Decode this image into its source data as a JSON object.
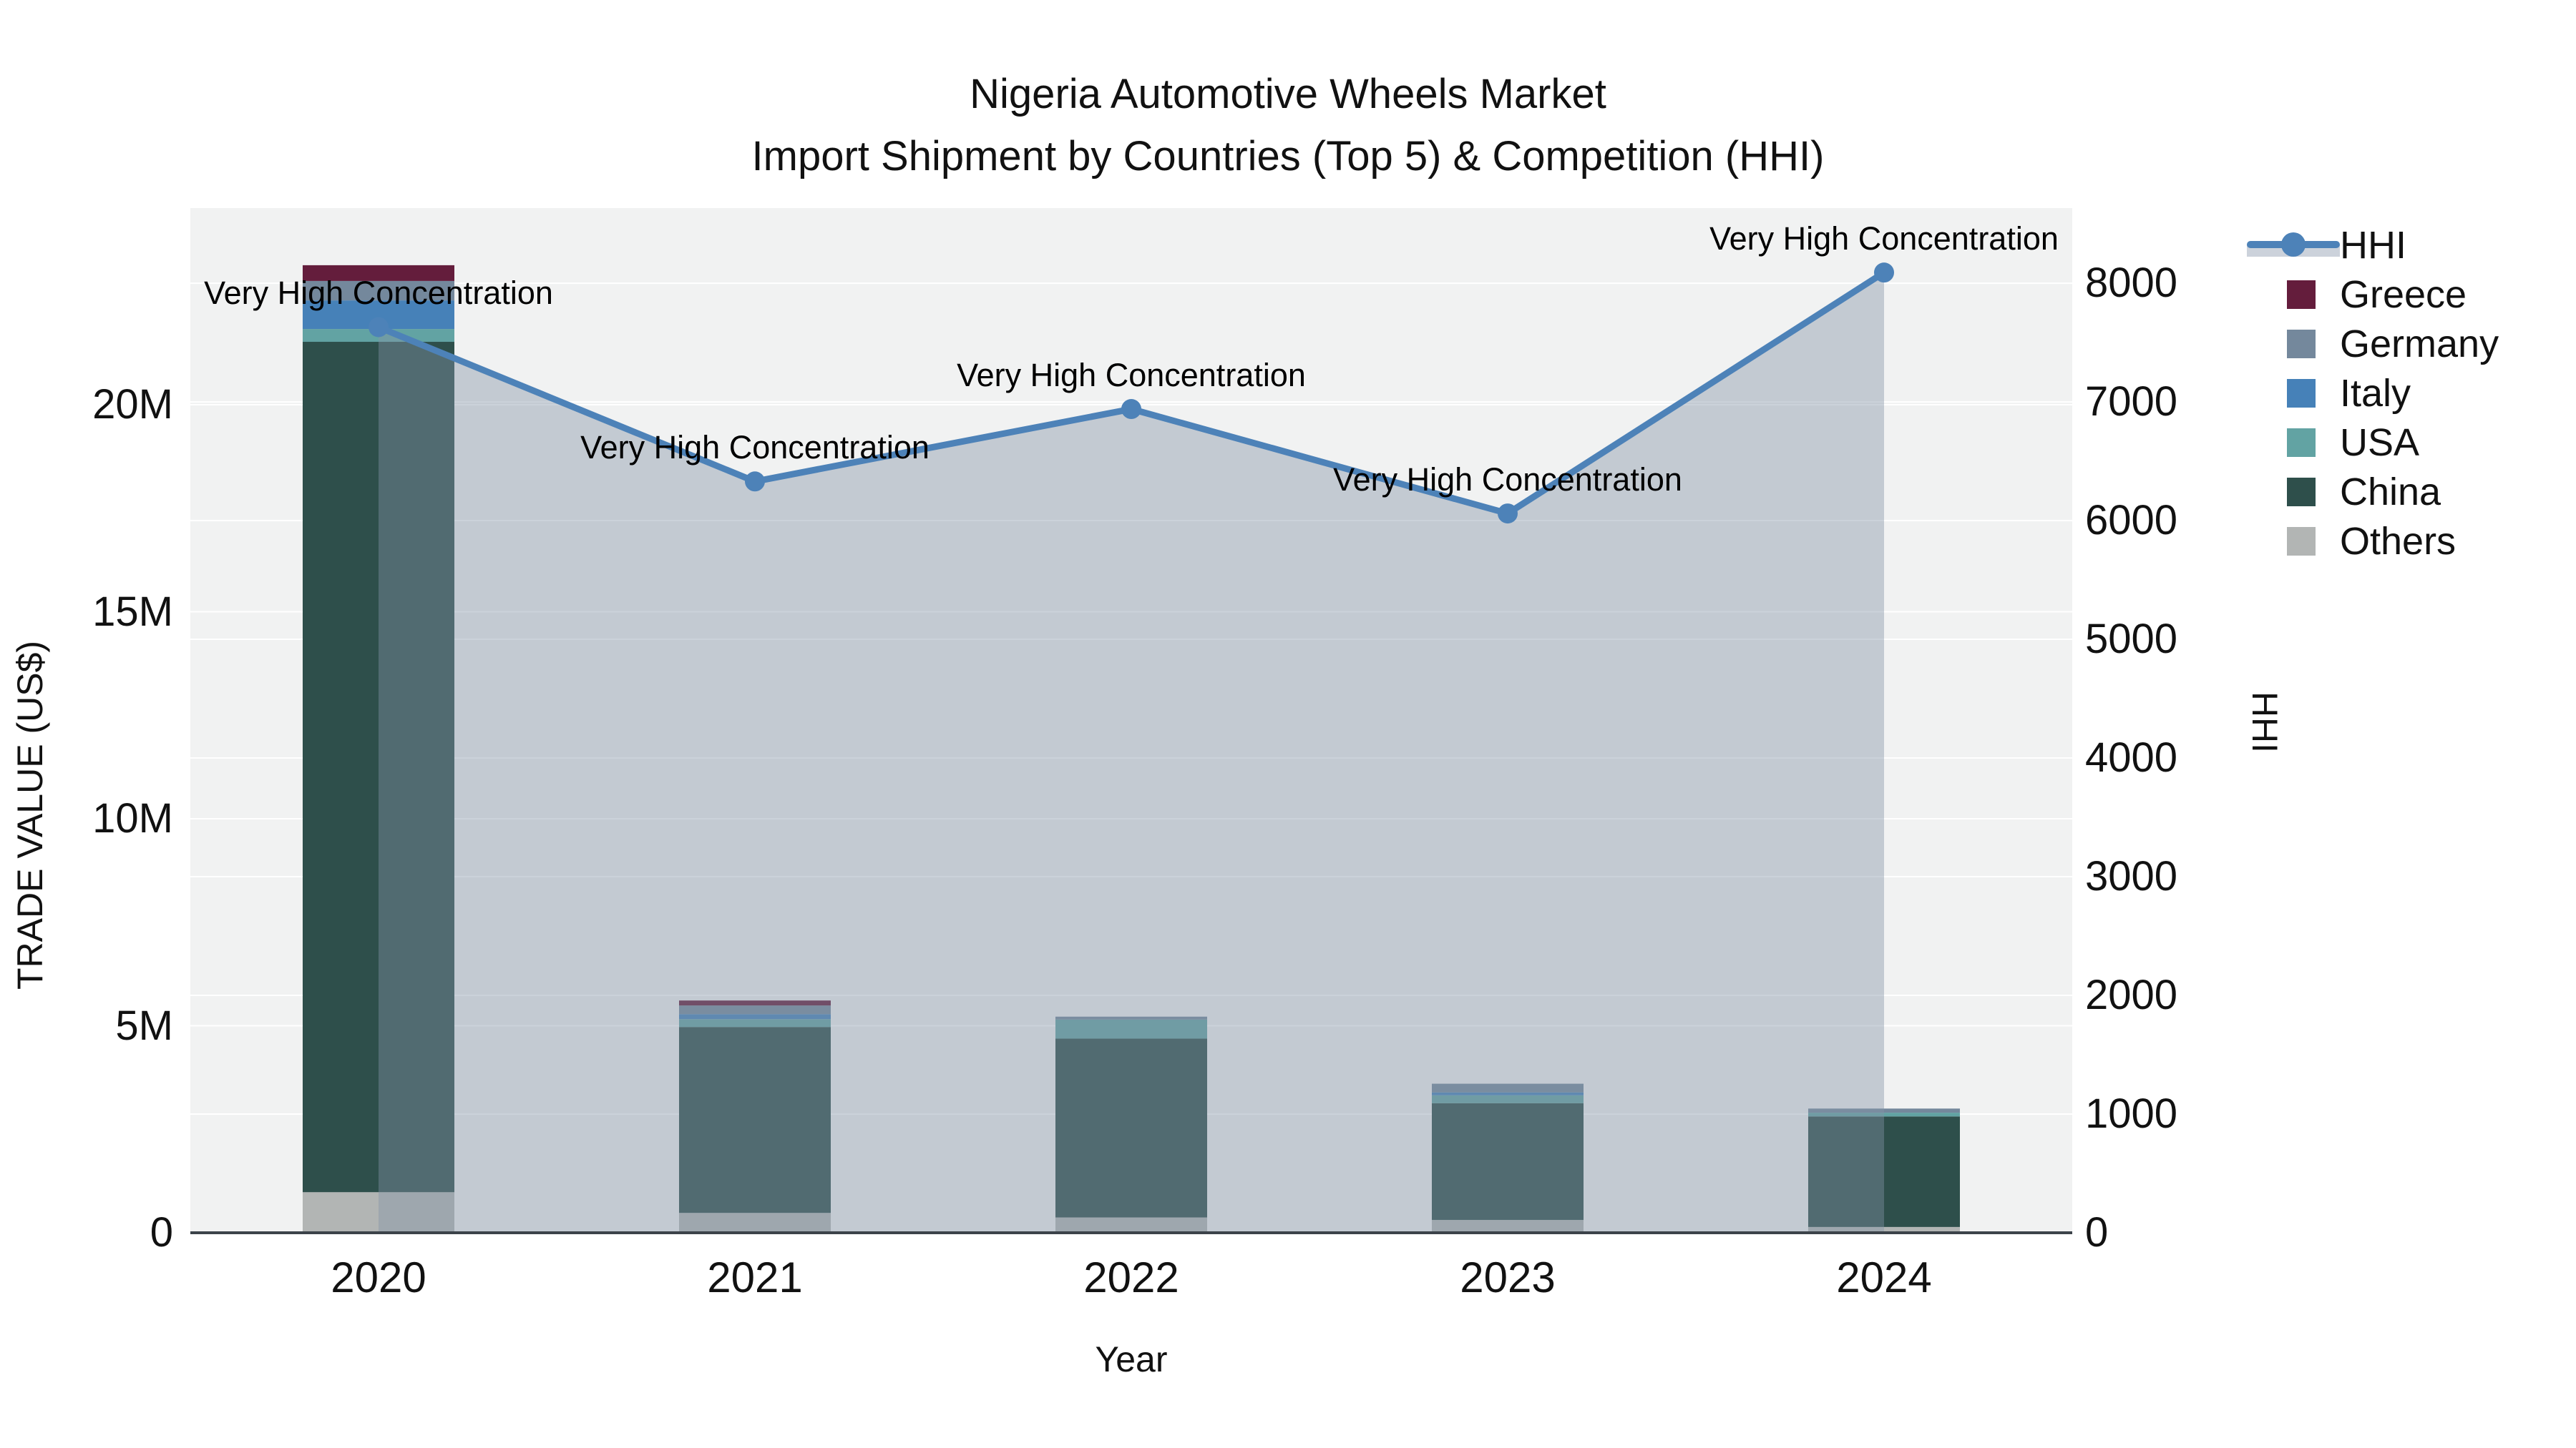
{
  "title": {
    "line1": "Nigeria Automotive Wheels Market",
    "line2": "Import Shipment by Countries (Top 5) & Competition (HHI)"
  },
  "axes": {
    "x": {
      "title": "Year",
      "categories": [
        "2020",
        "2021",
        "2022",
        "2023",
        "2024"
      ]
    },
    "y_left": {
      "title": "TRADE VALUE (US$)",
      "ticks": [
        "0",
        "5M",
        "10M",
        "15M",
        "20M"
      ],
      "tick_values": [
        0,
        5000000,
        10000000,
        15000000,
        20000000
      ],
      "max": 24750000
    },
    "y_right": {
      "title": "HHI",
      "ticks": [
        "0",
        "1000",
        "2000",
        "3000",
        "4000",
        "5000",
        "6000",
        "7000",
        "8000"
      ],
      "tick_values": [
        0,
        1000,
        2000,
        3000,
        4000,
        5000,
        6000,
        7000,
        8000
      ],
      "max": 8633
    }
  },
  "legend": {
    "items": [
      {
        "label": "HHI",
        "type": "line",
        "color": "#4d82b8"
      },
      {
        "label": "Greece",
        "type": "square",
        "color": "#641d3c"
      },
      {
        "label": "Germany",
        "type": "square",
        "color": "#74889c"
      },
      {
        "label": "Italy",
        "type": "square",
        "color": "#4681b8"
      },
      {
        "label": "USA",
        "type": "square",
        "color": "#62a3a3"
      },
      {
        "label": "China",
        "type": "square",
        "color": "#2e4f4b"
      },
      {
        "label": "Others",
        "type": "square",
        "color": "#b2b5b4"
      }
    ]
  },
  "annotations": [
    {
      "text": "Very High Concentration"
    },
    {
      "text": "Very High Concentration"
    },
    {
      "text": "Very High Concentration"
    },
    {
      "text": "Very High Concentration"
    },
    {
      "text": "Very High Concentration"
    }
  ],
  "colors": {
    "plot_background": "#f1f2f2",
    "gridline": "#ffffff",
    "axis_line": "#3c434a",
    "hhi_line": "#4d82b8",
    "hhi_fill": "rgba(132,147,168,0.42)"
  },
  "chart_data": {
    "type": [
      "bar",
      "line"
    ],
    "title": "Nigeria Automotive Wheels Market — Import Shipment by Countries (Top 5) & Competition (HHI)",
    "xlabel": "Year",
    "ylabel_left": "TRADE VALUE (US$)",
    "ylabel_right": "HHI",
    "categories": [
      "2020",
      "2021",
      "2022",
      "2023",
      "2024"
    ],
    "bar_stack_order_bottom_to_top": [
      "Others",
      "China",
      "USA",
      "Italy",
      "Germany",
      "Greece"
    ],
    "series": [
      {
        "name": "Others",
        "axis": "left",
        "color": "#b2b5b4",
        "values": [
          980000,
          480000,
          370000,
          310000,
          140000
        ]
      },
      {
        "name": "China",
        "axis": "left",
        "color": "#2e4f4b",
        "values": [
          20540000,
          4490000,
          4320000,
          2820000,
          2670000
        ]
      },
      {
        "name": "USA",
        "axis": "left",
        "color": "#62a3a3",
        "values": [
          310000,
          190000,
          460000,
          190000,
          90000
        ]
      },
      {
        "name": "Italy",
        "axis": "left",
        "color": "#4681b8",
        "values": [
          690000,
          120000,
          0,
          70000,
          0
        ]
      },
      {
        "name": "Germany",
        "axis": "left",
        "color": "#74889c",
        "values": [
          470000,
          210000,
          70000,
          210000,
          100000
        ]
      },
      {
        "name": "Greece",
        "axis": "left",
        "color": "#641d3c",
        "values": [
          380000,
          120000,
          0,
          0,
          0
        ]
      }
    ],
    "line_series": {
      "name": "HHI",
      "axis": "right",
      "color": "#4d82b8",
      "fill_to_zero": true,
      "values": [
        7630,
        6330,
        6940,
        6060,
        8090
      ]
    },
    "bar_totals": [
      23370000,
      5610000,
      5220000,
      3600000,
      3000000
    ],
    "ylim_left": [
      0,
      24750000
    ],
    "ylim_right": [
      0,
      8633
    ],
    "grid": true,
    "legend_position": "right"
  }
}
